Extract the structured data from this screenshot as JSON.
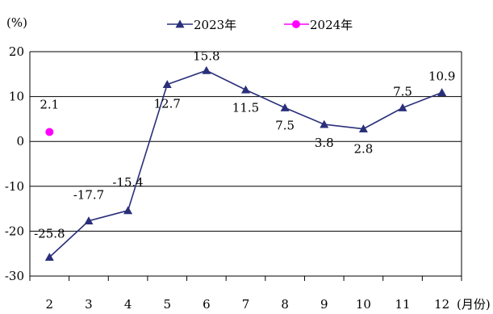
{
  "chart_data": {
    "type": "line",
    "y_unit": "(%)",
    "x_unit": "(月份)",
    "categories": [
      "2",
      "3",
      "4",
      "5",
      "6",
      "7",
      "8",
      "9",
      "10",
      "11",
      "12"
    ],
    "ylim": [
      -30,
      20
    ],
    "yticks": [
      -30,
      -20,
      -10,
      0,
      10,
      20
    ],
    "grid": true,
    "legend_position": "top-center",
    "series": [
      {
        "name": "2023年",
        "color": "#2a2f7a",
        "marker": "triangle",
        "values": [
          -25.8,
          -17.7,
          -15.4,
          12.7,
          15.8,
          11.5,
          7.5,
          3.8,
          2.8,
          7.5,
          10.9
        ],
        "labels": [
          "-25.8",
          "-17.7",
          "-15.4",
          "12.7",
          "15.8",
          "11.5",
          "7.5",
          "3.8",
          "2.8",
          "7.5",
          "10.9"
        ]
      },
      {
        "name": "2024年",
        "color": "#ff00ff",
        "marker": "circle",
        "values": [
          2.1,
          null,
          null,
          null,
          null,
          null,
          null,
          null,
          null,
          null,
          null
        ],
        "labels": [
          "2.1",
          null,
          null,
          null,
          null,
          null,
          null,
          null,
          null,
          null,
          null
        ]
      }
    ]
  }
}
